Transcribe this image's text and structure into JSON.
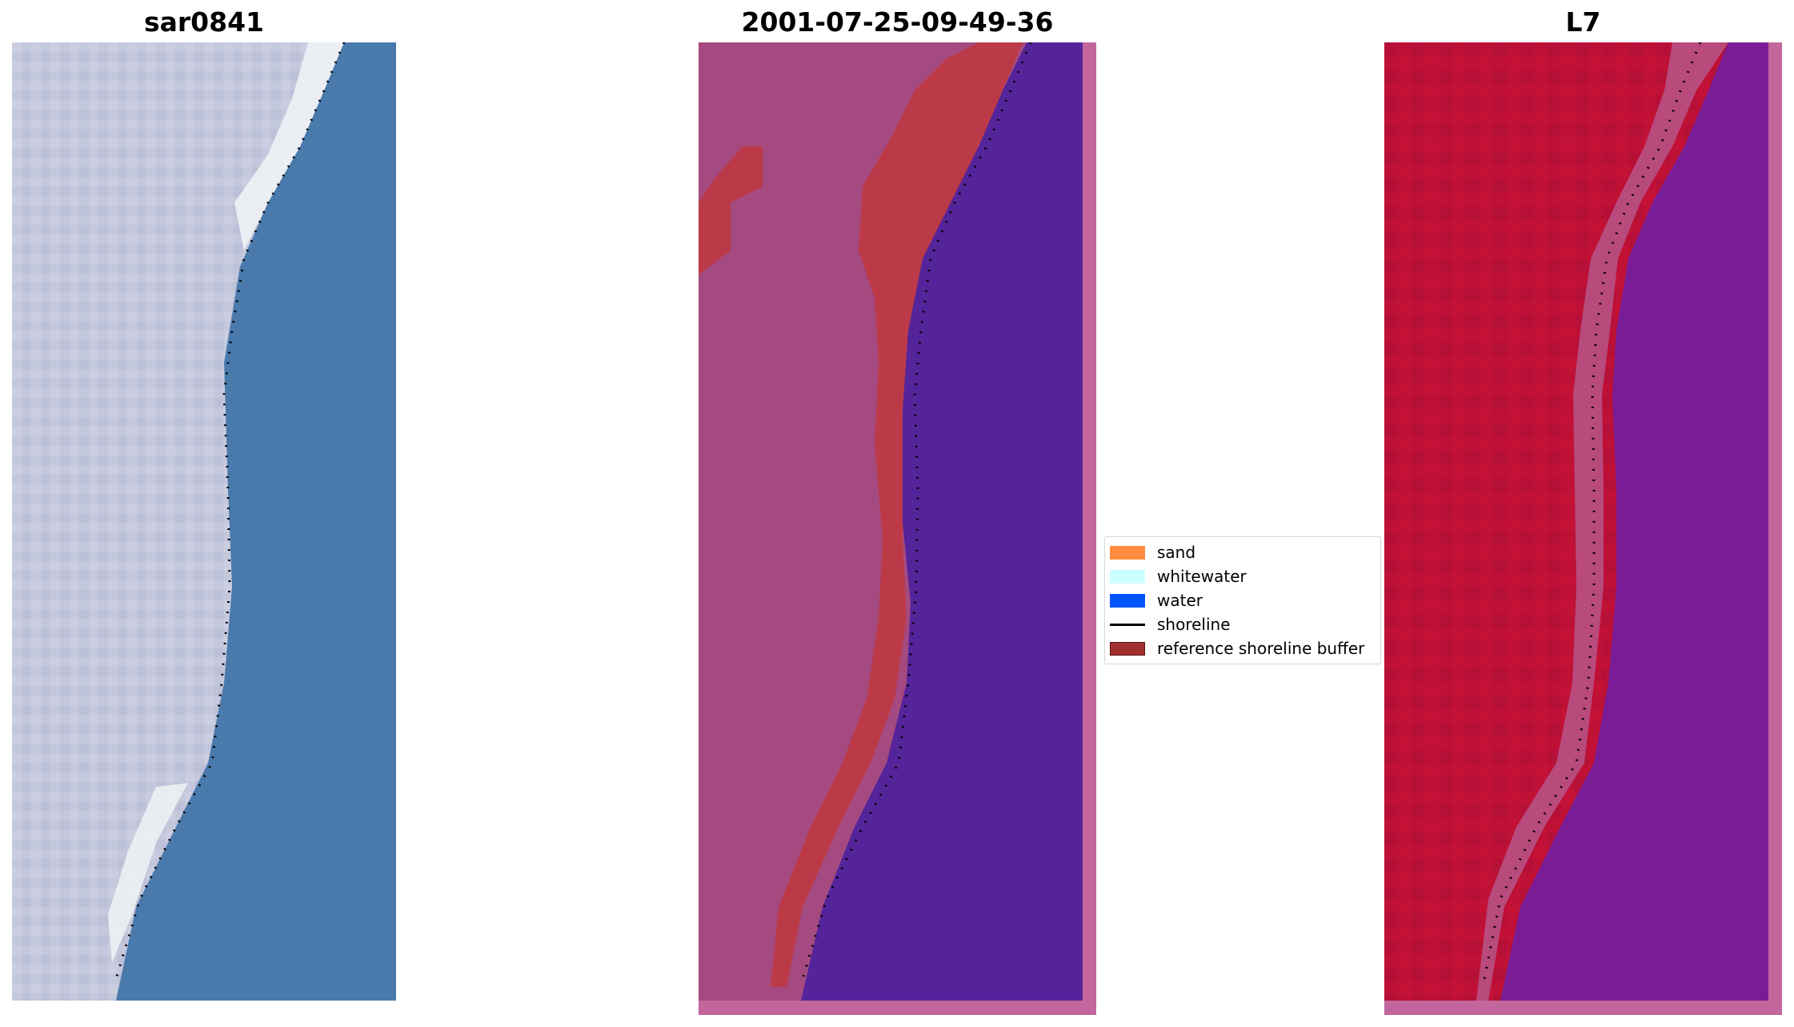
{
  "panels": [
    {
      "title": "sar0841"
    },
    {
      "title": "2001-07-25-09-49-36"
    },
    {
      "title": "L7"
    }
  ],
  "legend": {
    "items": [
      {
        "label": "sand",
        "color": "#ff8c40"
      },
      {
        "label": "whitewater",
        "color": "#ccffff"
      },
      {
        "label": "water",
        "color": "#0055ff"
      },
      {
        "label": "shoreline",
        "color": "#000000"
      },
      {
        "label": "reference shoreline buffer",
        "color": "#a03030"
      }
    ]
  },
  "colors": {
    "rgb_land": "#c4c8dc",
    "rgb_surf": "#f2f6f6",
    "rgb_water": "#4a7aac",
    "classified_land": "#a54a80",
    "classified_border": "#c2669c",
    "classified_water": "#55249a",
    "classified_buffer": "#bc3a48",
    "index_land": "#bf1036",
    "index_water": "#7a1c96",
    "index_transition": "#b84a7c"
  }
}
